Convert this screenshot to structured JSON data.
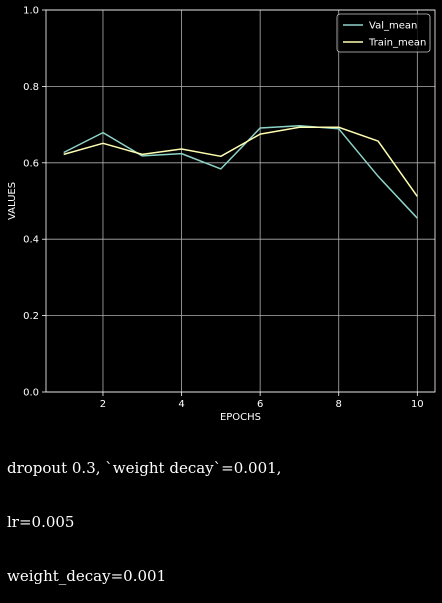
{
  "chart_data": {
    "type": "line",
    "x": [
      1,
      2,
      3,
      4,
      5,
      6,
      7,
      8,
      9,
      10
    ],
    "series": [
      {
        "name": "Val_mean",
        "color": "#8dd3c7",
        "values": [
          0.627,
          0.679,
          0.618,
          0.624,
          0.584,
          0.691,
          0.697,
          0.689,
          0.565,
          0.455
        ]
      },
      {
        "name": "Train_mean",
        "color": "#ffffb3",
        "values": [
          0.622,
          0.651,
          0.622,
          0.636,
          0.617,
          0.675,
          0.693,
          0.693,
          0.657,
          0.512
        ]
      }
    ],
    "xlabel": "EPOCHS",
    "ylabel": "VALUES",
    "xlim": [
      0.55,
      10.45
    ],
    "ylim": [
      0,
      1
    ],
    "xticks": [
      2,
      4,
      6,
      8,
      10
    ],
    "yticks": [
      "0.0",
      "0.2",
      "0.4",
      "0.6",
      "0.8",
      "1.0"
    ],
    "grid": true,
    "legend_position": "top-right",
    "background": "#000000",
    "axis_color": "#ffffff",
    "grid_color": "#b0b0b0"
  },
  "caption": {
    "line1": "dropout 0.3, `weight decay`=0.001,",
    "line2": "lr=0.005",
    "line3": "weight_decay=0.001"
  }
}
